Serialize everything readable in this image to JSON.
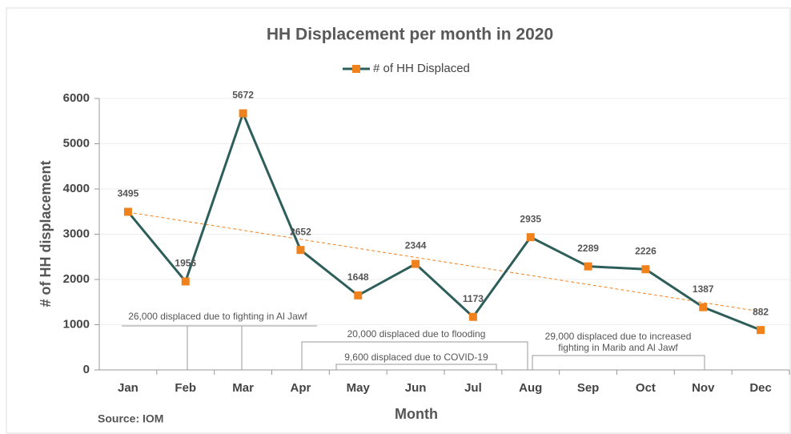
{
  "chart_data": {
    "type": "line",
    "title": "HH Displacement per month in 2020",
    "x_label": "Month",
    "y_label": "# of HH displacement",
    "source": "Source: IOM",
    "categories": [
      "Jan",
      "Feb",
      "Mar",
      "Apr",
      "May",
      "Jun",
      "Jul",
      "Aug",
      "Sep",
      "Oct",
      "Nov",
      "Dec"
    ],
    "series": [
      {
        "name": "# of HH Displaced",
        "color": "#2e5e5a",
        "marker_color": "#f0821e",
        "values": [
          3495,
          1956,
          5672,
          2652,
          1648,
          2344,
          1173,
          2935,
          2289,
          2226,
          1387,
          882
        ]
      }
    ],
    "trendline": true,
    "trendline_color": "#f0821e",
    "ylim": [
      0,
      6000
    ],
    "yticks": [
      0,
      1000,
      2000,
      3000,
      4000,
      5000,
      6000
    ],
    "grid": true,
    "annotations": [
      "26,000 displaced due to fighting in Al Jawf",
      "20,000 displaced due to flooding",
      "9,600 displaced due to COVID-19",
      [
        "29,000 displaced due to increased",
        "fighting in Marib and Al Jawf"
      ]
    ]
  }
}
